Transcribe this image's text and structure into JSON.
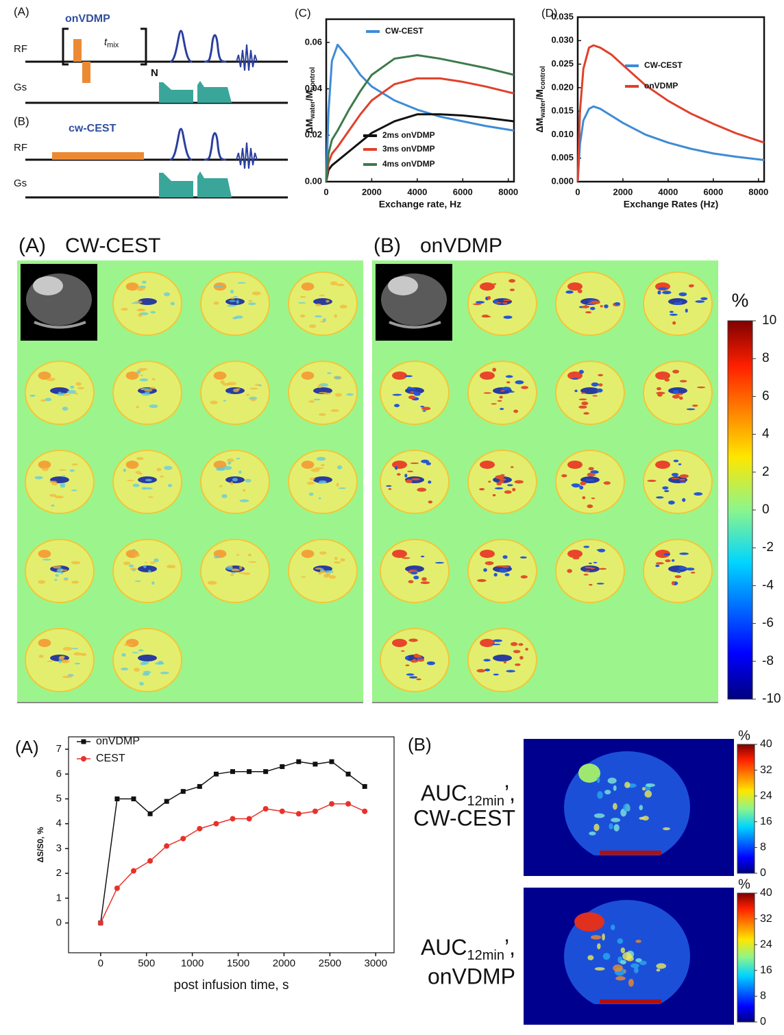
{
  "sequence_diagram": {
    "panel_a": {
      "label": "(A)",
      "title": "onVDMP",
      "rf": "RF",
      "t": "t",
      "mix": "mix",
      "n": "N",
      "gs": "Gs"
    },
    "panel_b": {
      "label": "(B)",
      "title": "cw-CEST",
      "rf": "RF",
      "gs": "Gs"
    }
  },
  "chart_data": [
    {
      "type": "line",
      "panel_label": "(C)",
      "x_label": "Exchange rate, Hz",
      "y_label": [
        "ΔM",
        "water",
        "/M",
        "control"
      ],
      "x": [
        0,
        100,
        250,
        500,
        1000,
        1500,
        2000,
        3000,
        4000,
        5000,
        6000,
        7000,
        8250
      ],
      "series": [
        {
          "name": "CW-CEST",
          "color": "#3d8bd6",
          "values": [
            0,
            0.03,
            0.052,
            0.059,
            0.053,
            0.046,
            0.041,
            0.035,
            0.031,
            0.028,
            0.026,
            0.024,
            0.022
          ]
        },
        {
          "name": "2ms onVDMP",
          "color": "#111111",
          "values": [
            0,
            0.005,
            0.007,
            0.009,
            0.013,
            0.017,
            0.021,
            0.026,
            0.029,
            0.029,
            0.0285,
            0.0275,
            0.026
          ]
        },
        {
          "name": "3ms onVDMP",
          "color": "#e0402a",
          "values": [
            0,
            0.008,
            0.012,
            0.015,
            0.022,
            0.029,
            0.035,
            0.042,
            0.0445,
            0.0445,
            0.043,
            0.041,
            0.038
          ]
        },
        {
          "name": "4ms onVDMP",
          "color": "#3d7a4a",
          "values": [
            0,
            0.012,
            0.018,
            0.022,
            0.031,
            0.039,
            0.046,
            0.053,
            0.0545,
            0.053,
            0.051,
            0.049,
            0.046
          ]
        }
      ],
      "xlim": [
        0,
        8250
      ],
      "xticks": [
        0,
        2000,
        4000,
        6000,
        8000
      ],
      "ylim": [
        0,
        0.07
      ],
      "yticks": [
        {
          "value": 0,
          "label": "0.00"
        },
        0.02,
        0.04,
        0.06
      ]
    },
    {
      "type": "line",
      "panel_label": "(D)",
      "x_label": "Exchange Rates (Hz)",
      "y_label": [
        "ΔM",
        "water",
        "/M",
        "control"
      ],
      "x": [
        0,
        100,
        250,
        500,
        700,
        1000,
        1500,
        2000,
        3000,
        4000,
        5000,
        6000,
        7000,
        8250
      ],
      "series": [
        {
          "name": "CW-CEST",
          "color": "#3d8bd6",
          "values": [
            0,
            0.008,
            0.013,
            0.0155,
            0.016,
            0.0155,
            0.014,
            0.0125,
            0.01,
            0.0083,
            0.007,
            0.006,
            0.0053,
            0.0046
          ]
        },
        {
          "name": "onVDMP",
          "color": "#e0402a",
          "values": [
            0,
            0.015,
            0.024,
            0.0285,
            0.029,
            0.0285,
            0.027,
            0.0248,
            0.0205,
            0.0172,
            0.0145,
            0.0123,
            0.0103,
            0.0083
          ]
        }
      ],
      "xlim": [
        0,
        8250
      ],
      "xticks": [
        0,
        2000,
        4000,
        6000,
        8000
      ],
      "ylim": [
        0,
        0.035
      ],
      "yticks": [
        {
          "value": 0,
          "label": "0.000"
        },
        0.005,
        {
          "value": 0.01,
          "label": "0.010"
        },
        0.015,
        {
          "value": 0.02,
          "label": "0.020"
        },
        0.025,
        {
          "value": 0.03,
          "label": "0.030"
        },
        0.035
      ]
    },
    {
      "type": "line",
      "panel_label": "(A)",
      "x_label": "post infusion time, s",
      "y_label": [
        "ΔS/S0, %"
      ],
      "x": [
        0,
        180,
        360,
        540,
        720,
        900,
        1080,
        1260,
        1440,
        1620,
        1800,
        1980,
        2160,
        2340,
        2520,
        2700,
        2880
      ],
      "series": [
        {
          "name": "onVDMP",
          "color": "#111111",
          "marker": "square",
          "values": [
            0,
            5.0,
            5.0,
            4.4,
            4.9,
            5.3,
            5.5,
            6.0,
            6.1,
            6.1,
            6.1,
            6.3,
            6.5,
            6.4,
            6.5,
            6.0,
            5.5
          ]
        },
        {
          "name": "CEST",
          "color": "#e8312a",
          "marker": "circle",
          "values": [
            0,
            1.4,
            2.1,
            2.5,
            3.1,
            3.4,
            3.8,
            4.0,
            4.2,
            4.2,
            4.6,
            4.5,
            4.4,
            4.5,
            4.8,
            4.8,
            4.5
          ]
        }
      ],
      "xlim": [
        -350,
        3200
      ],
      "xticks": [
        0,
        500,
        1000,
        1500,
        2000,
        2500,
        3000
      ],
      "ylim": [
        -1.2,
        7.5
      ],
      "yticks": [
        0,
        1,
        2,
        3,
        4,
        5,
        6,
        7
      ]
    }
  ],
  "map_grid": {
    "panels": [
      {
        "label": "(A)",
        "title": "CW-CEST"
      },
      {
        "label": "(B)",
        "title": "onVDMP"
      }
    ],
    "colorbar": {
      "unit": "%",
      "lim": [
        -10,
        10
      ],
      "ticks": [
        10,
        8,
        6,
        4,
        2,
        0,
        -2,
        -4,
        -6,
        -8,
        -10
      ]
    }
  },
  "auc_maps": {
    "label": "(B)",
    "maps": [
      {
        "main": "AUC",
        "sub": "12min",
        "suffix": "’,",
        "line2": "CW-CEST"
      },
      {
        "main": "AUC",
        "sub": "12min",
        "suffix": "’,",
        "line2": "onVDMP"
      }
    ],
    "colorbar": {
      "unit": "%",
      "lim": [
        0,
        40
      ],
      "ticks": [
        0,
        8,
        16,
        24,
        32,
        40
      ]
    }
  }
}
